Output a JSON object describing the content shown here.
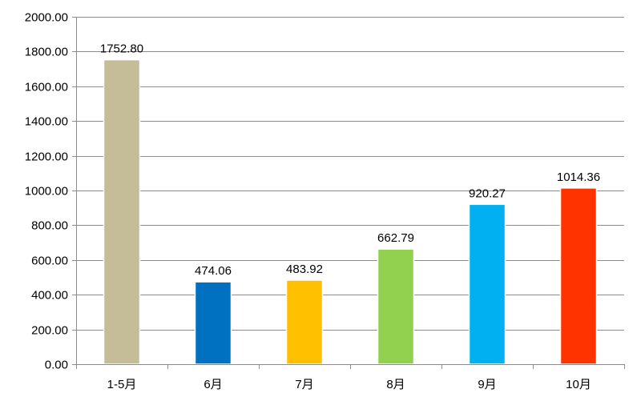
{
  "chart_data": {
    "type": "bar",
    "title": "",
    "xlabel": "",
    "ylabel": "",
    "categories": [
      "1-5月",
      "6月",
      "7月",
      "8月",
      "9月",
      "10月"
    ],
    "values": [
      1752.8,
      474.06,
      483.92,
      662.79,
      920.27,
      1014.36
    ],
    "value_labels": [
      "1752.80",
      "474.06",
      "483.92",
      "662.79",
      "920.27",
      "1014.36"
    ],
    "colors": [
      "#C4BD97",
      "#0070C0",
      "#FFC000",
      "#92D050",
      "#00B0F0",
      "#FF3300"
    ],
    "ylim": [
      0,
      2000
    ],
    "yticks": [
      "0.00",
      "200.00",
      "400.00",
      "600.00",
      "800.00",
      "1000.00",
      "1200.00",
      "1400.00",
      "1600.00",
      "1800.00",
      "2000.00"
    ],
    "grid": true,
    "legend": "none"
  }
}
